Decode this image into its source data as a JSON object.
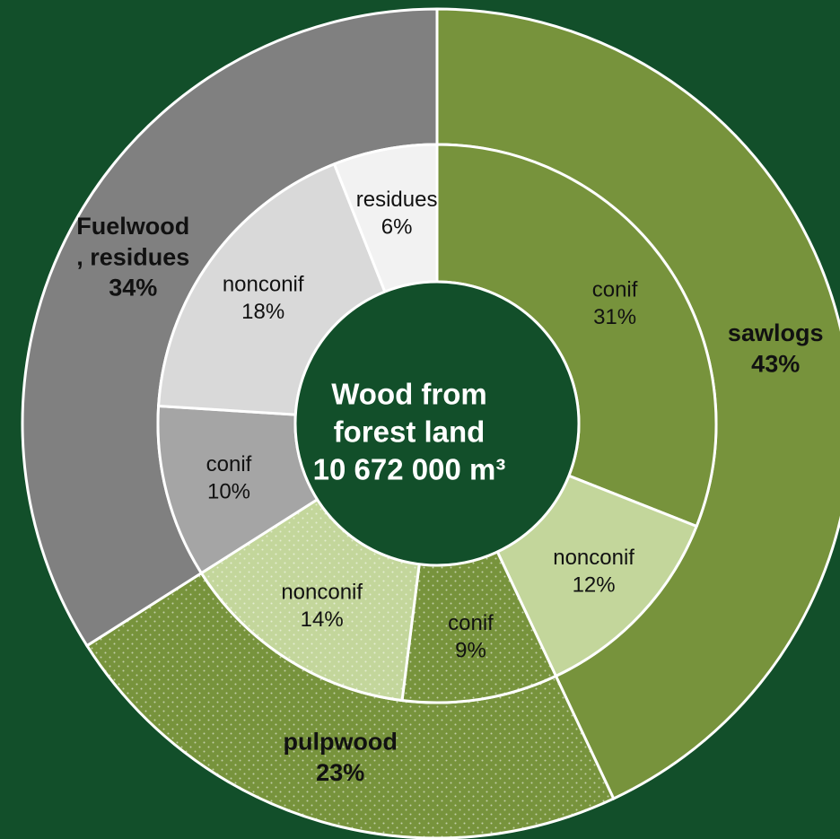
{
  "chart_data": {
    "type": "pie",
    "subtype": "two-level donut",
    "title": "Wood from forest land",
    "total_label": "10 672 000 m³",
    "center_lines": [
      "Wood from",
      "forest land",
      "10 672 000 m³"
    ],
    "outer_ring": [
      {
        "label_lines": [
          "sawlogs"
        ],
        "percent_label": "43%",
        "value": 43,
        "color": "#77933c",
        "pattern": "none"
      },
      {
        "label_lines": [
          "pulpwood"
        ],
        "percent_label": "23%",
        "value": 23,
        "color": "#77933c",
        "pattern": "dots"
      },
      {
        "label_lines": [
          "Fuelwood",
          ", residues"
        ],
        "percent_label": "34%",
        "value": 34,
        "color": "#808080",
        "pattern": "none"
      }
    ],
    "inner_ring": [
      {
        "label": "conif",
        "percent_label": "31%",
        "value": 31,
        "parent": "sawlogs",
        "color": "#77933c",
        "pattern": "none"
      },
      {
        "label": "nonconif",
        "percent_label": "12%",
        "value": 12,
        "parent": "sawlogs",
        "color": "#c3d69b",
        "pattern": "none"
      },
      {
        "label": "conif",
        "percent_label": "9%",
        "value": 9,
        "parent": "pulpwood",
        "color": "#77933c",
        "pattern": "dots"
      },
      {
        "label": "nonconif",
        "percent_label": "14%",
        "value": 14,
        "parent": "pulpwood",
        "color": "#c3d69b",
        "pattern": "dots"
      },
      {
        "label": "conif",
        "percent_label": "10%",
        "value": 10,
        "parent": "Fuelwood, residues",
        "color": "#a5a5a5",
        "pattern": "none"
      },
      {
        "label": "nonconif",
        "percent_label": "18%",
        "value": 18,
        "parent": "Fuelwood, residues",
        "color": "#d9d9d9",
        "pattern": "none"
      },
      {
        "label": "residues",
        "percent_label": "6%",
        "value": 6,
        "parent": "Fuelwood, residues",
        "color": "#f2f2f2",
        "pattern": "none"
      }
    ],
    "background_color": "#124f2a",
    "center_color": "#124f2a",
    "legend": "none"
  }
}
